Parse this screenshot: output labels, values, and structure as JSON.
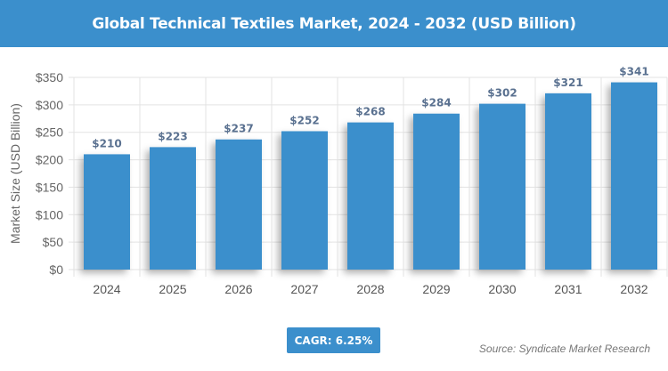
{
  "header": {
    "title": "Global Technical Textiles Market, 2024 - 2032 (USD Billion)"
  },
  "chart_data": {
    "type": "bar",
    "title": "Global Technical Textiles Market, 2024 - 2032 (USD Billion)",
    "xlabel": "",
    "ylabel": "Market Size (USD Billion)",
    "categories": [
      "2024",
      "2025",
      "2026",
      "2027",
      "2028",
      "2029",
      "2030",
      "2031",
      "2032"
    ],
    "values": [
      210,
      223,
      237,
      252,
      268,
      284,
      302,
      321,
      341
    ],
    "data_labels": [
      "$210",
      "$223",
      "$237",
      "$252",
      "$268",
      "$284",
      "$302",
      "$321",
      "$341"
    ],
    "ylim": [
      0,
      350
    ],
    "yticks": [
      0,
      50,
      100,
      150,
      200,
      250,
      300,
      350
    ],
    "ytick_labels": [
      "$0",
      "$50",
      "$100",
      "$150",
      "$200",
      "$250",
      "$300",
      "$350"
    ],
    "grid": true,
    "bar_color": "#3b8fcc"
  },
  "footer": {
    "cagr": "CAGR: 6.25%",
    "source": "Source: Syndicate Market Research"
  }
}
